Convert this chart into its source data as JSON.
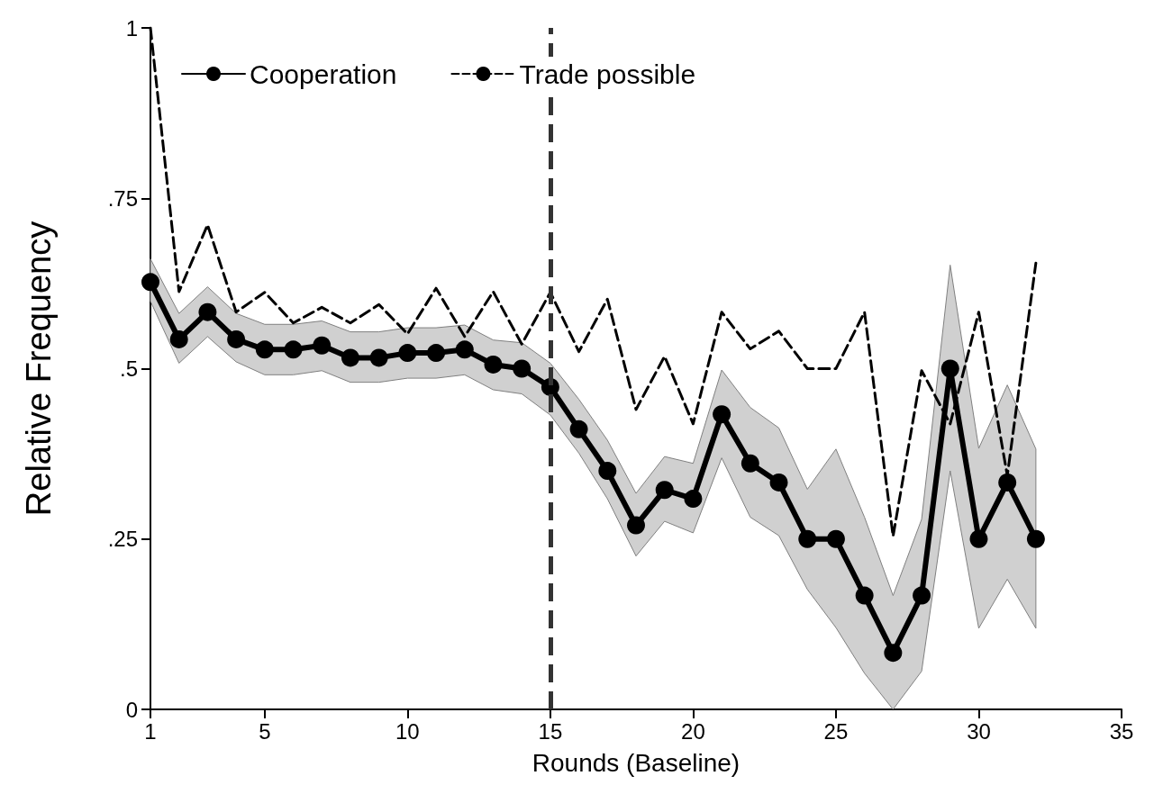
{
  "chart_data": {
    "type": "line",
    "xlabel": "Rounds (Baseline)",
    "ylabel": "Relative Frequency",
    "x": [
      1,
      2,
      3,
      4,
      5,
      6,
      7,
      8,
      9,
      10,
      11,
      12,
      13,
      14,
      15,
      16,
      17,
      18,
      19,
      20,
      21,
      22,
      23,
      24,
      25,
      26,
      27,
      28,
      29,
      30,
      31,
      32
    ],
    "series": [
      {
        "name": "Cooperation",
        "color": "#000000",
        "marker": "circle",
        "line_style": "solid",
        "values": [
          0.627,
          0.543,
          0.583,
          0.543,
          0.528,
          0.528,
          0.534,
          0.516,
          0.516,
          0.523,
          0.523,
          0.528,
          0.506,
          0.5,
          0.473,
          0.411,
          0.35,
          0.27,
          0.322,
          0.309,
          0.433,
          0.361,
          0.333,
          0.25,
          0.25,
          0.167,
          0.083,
          0.167,
          0.5,
          0.25,
          0.333,
          0.25
        ],
        "lower": [
          0.599,
          0.508,
          0.547,
          0.51,
          0.491,
          0.491,
          0.497,
          0.48,
          0.48,
          0.486,
          0.486,
          0.491,
          0.469,
          0.463,
          0.432,
          0.376,
          0.309,
          0.225,
          0.276,
          0.259,
          0.369,
          0.282,
          0.255,
          0.176,
          0.12,
          0.053,
          0,
          0.056,
          0.35,
          0.119,
          0.191,
          0.119
        ],
        "upper": [
          0.661,
          0.581,
          0.62,
          0.581,
          0.565,
          0.565,
          0.57,
          0.554,
          0.554,
          0.56,
          0.56,
          0.564,
          0.542,
          0.538,
          0.508,
          0.455,
          0.395,
          0.317,
          0.371,
          0.361,
          0.498,
          0.443,
          0.413,
          0.323,
          0.382,
          0.282,
          0.167,
          0.279,
          0.652,
          0.383,
          0.476,
          0.382
        ]
      },
      {
        "name": "Trade possible",
        "color": "#000000",
        "marker": "none",
        "line_style": "dashed",
        "values": [
          1.0,
          0.613,
          0.711,
          0.583,
          0.612,
          0.567,
          0.59,
          0.567,
          0.594,
          0.551,
          0.618,
          0.547,
          0.613,
          0.536,
          0.612,
          0.525,
          0.602,
          0.44,
          0.518,
          0.419,
          0.583,
          0.529,
          0.555,
          0.5,
          0.5,
          0.583,
          0.254,
          0.497,
          0.419,
          0.583,
          0.343,
          0.655
        ]
      }
    ],
    "xlim": [
      1,
      35
    ],
    "xticks": [
      1,
      5,
      10,
      15,
      20,
      25,
      30,
      35
    ],
    "ylim": [
      0,
      1
    ],
    "yticks": [
      0,
      {
        "value": 0.25,
        "label": ".25"
      },
      {
        "value": 0.5,
        "label": ".5"
      },
      {
        "value": 0.75,
        "label": ".75"
      },
      1
    ],
    "ref_lines": [
      {
        "axis": "x",
        "value": 15,
        "color": "#333333",
        "line_style": "dashed"
      }
    ],
    "grid": false,
    "legend": "top left"
  }
}
